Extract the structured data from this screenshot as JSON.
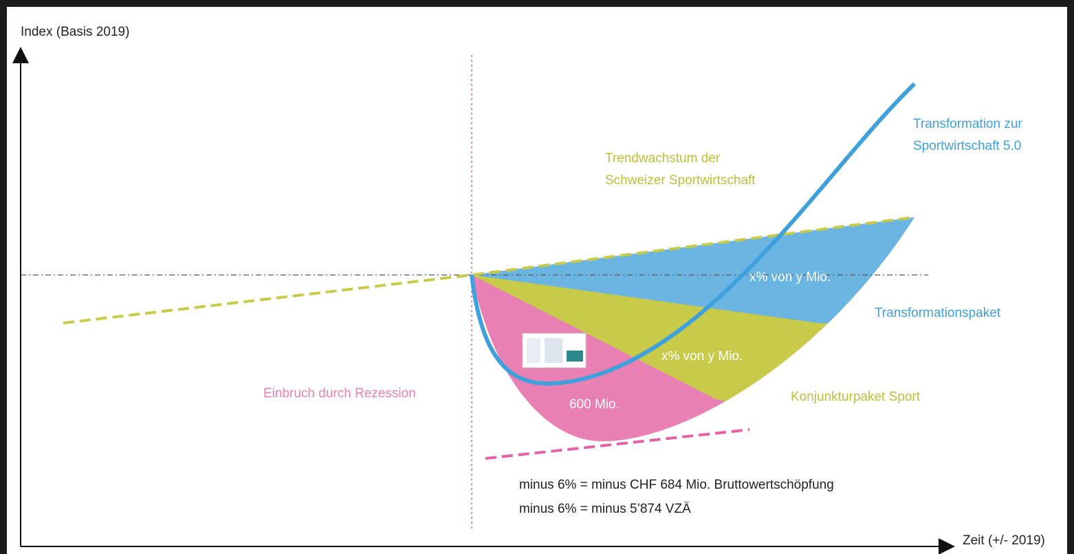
{
  "y_axis_label": "Index (Basis 2019)",
  "x_axis_label": "Zeit (+/- 2019)",
  "labels": {
    "transformation": [
      "Transformation zur",
      "Sportwirtschaft 5.0"
    ],
    "trend": [
      "Trendwachstum der",
      "Schweizer Sportwirtschaft"
    ],
    "blue_area": "x% von y Mio.",
    "transformationspaket": "Transformationspaket",
    "olive_area": "x% von y Mio.",
    "rezession": "Einbruch durch Rezession",
    "pink_area": "600 Mio.",
    "konjunktur": "Konjunkturpaket Sport"
  },
  "notes": [
    "minus 6% = minus CHF 684 Mio. Bruttowertschöpfung",
    "minus 6% = minus 5’874 VZÄ"
  ]
}
